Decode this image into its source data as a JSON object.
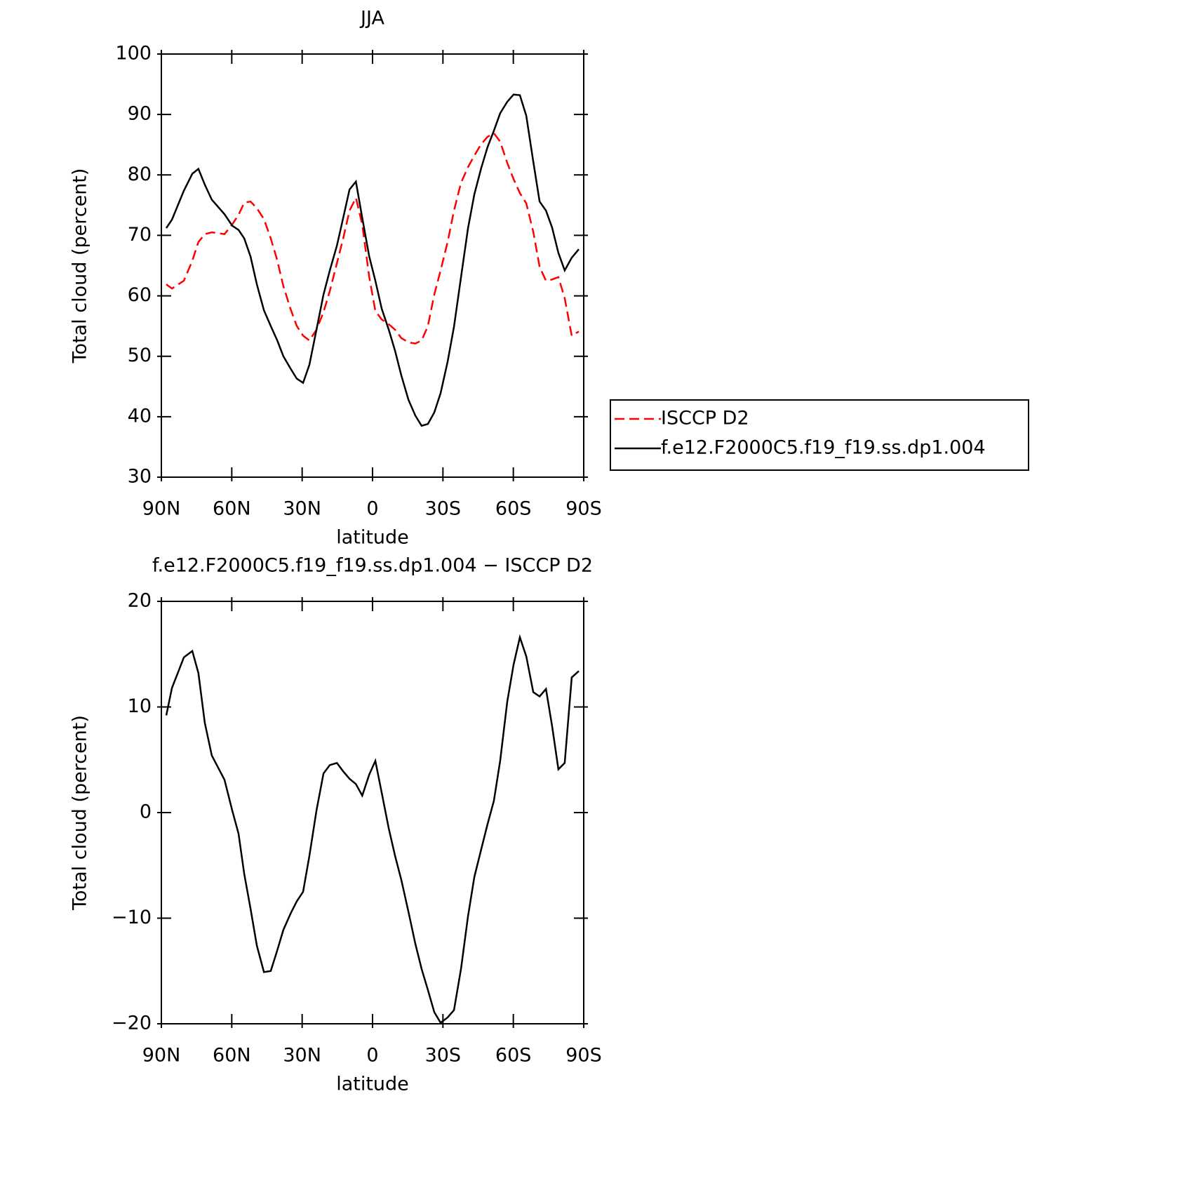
{
  "chart_data": [
    {
      "type": "line",
      "title": "JJA",
      "xlabel": "latitude",
      "ylabel": "Total cloud (percent)",
      "x": [
        87.9,
        85.5,
        80.4,
        76.8,
        74.2,
        71.5,
        68.5,
        63.1,
        59.8,
        57.1,
        54.7,
        52.0,
        49.3,
        46.3,
        43.4,
        40.7,
        38.0,
        35.0,
        32.3,
        29.6,
        26.9,
        23.9,
        20.9,
        18.2,
        15.2,
        12.5,
        9.8,
        7.1,
        4.4,
        1.4,
        -1.2,
        -3.9,
        -6.9,
        -9.6,
        -12.3,
        -15.3,
        -18.2,
        -20.9,
        -23.6,
        -26.3,
        -29.0,
        -32.0,
        -34.7,
        -37.7,
        -40.7,
        -43.4,
        -46.3,
        -49.0,
        -51.7,
        -54.4,
        -57.4,
        -60.1,
        -62.8,
        -65.5,
        -68.5,
        -71.2,
        -73.9,
        -76.5,
        -79.2,
        -81.9,
        -84.9,
        -87.9
      ],
      "series": [
        {
          "name": "ISCCP D2",
          "color": "#ff0000",
          "dashed": true,
          "values": [
            61.9,
            61.2,
            62.5,
            65.8,
            68.9,
            70.2,
            70.5,
            70.2,
            71.8,
            73.4,
            75.4,
            75.6,
            74.5,
            72.7,
            69.5,
            66.0,
            61.6,
            57.9,
            55.0,
            53.4,
            52.6,
            54.4,
            57.3,
            60.8,
            65.4,
            69.5,
            74.1,
            76.2,
            71.8,
            63.1,
            57.5,
            56.1,
            55.3,
            54.4,
            53.0,
            52.3,
            52.1,
            52.6,
            55.0,
            60.2,
            64.2,
            68.9,
            74.1,
            78.7,
            81.3,
            83.2,
            85.1,
            86.3,
            86.9,
            85.5,
            82.0,
            79.3,
            77.0,
            75.3,
            70.6,
            64.8,
            62.5,
            62.7,
            63.1,
            59.6,
            53.4,
            54.1
          ]
        },
        {
          "name": "f.e12.F2000C5.f19_f19.ss.dp1.004",
          "color": "#000000",
          "dashed": false,
          "values": [
            71.2,
            72.6,
            77.4,
            80.2,
            81.0,
            78.4,
            75.9,
            73.5,
            71.6,
            70.9,
            69.5,
            66.5,
            61.9,
            57.6,
            55.0,
            52.7,
            50.0,
            48.0,
            46.3,
            45.6,
            48.6,
            54.4,
            60.2,
            64.2,
            68.3,
            72.9,
            77.6,
            78.9,
            72.9,
            66.5,
            62.5,
            57.9,
            54.4,
            50.9,
            46.8,
            42.8,
            40.2,
            38.5,
            38.8,
            40.7,
            43.9,
            49.1,
            54.9,
            63.1,
            71.2,
            76.8,
            81.1,
            84.6,
            87.3,
            90.2,
            92.1,
            93.3,
            93.2,
            89.8,
            82.2,
            75.6,
            74.1,
            71.3,
            67.1,
            64.2,
            66.3,
            67.7
          ]
        }
      ],
      "xlim": [
        90,
        -90
      ],
      "xticks": [
        {
          "value": 90,
          "label": "90N"
        },
        {
          "value": 60,
          "label": "60N"
        },
        {
          "value": 30,
          "label": "30N"
        },
        0,
        {
          "value": -30,
          "label": "30S"
        },
        {
          "value": -60,
          "label": "60S"
        },
        {
          "value": -90,
          "label": "90S"
        }
      ],
      "ylim": [
        30,
        100
      ],
      "yticks": [
        30,
        40,
        50,
        60,
        70,
        80,
        90,
        100
      ],
      "legend": "right"
    },
    {
      "type": "line",
      "title": "f.e12.F2000C5.f19_f19.ss.dp1.004 − ISCCP D2",
      "xlabel": "latitude",
      "ylabel": "Total cloud (percent)",
      "x": [
        87.9,
        85.5,
        80.4,
        76.8,
        74.2,
        71.5,
        68.5,
        63.1,
        59.8,
        57.1,
        54.7,
        52.0,
        49.3,
        46.3,
        43.4,
        40.7,
        38.0,
        35.0,
        32.3,
        29.6,
        26.9,
        23.9,
        20.9,
        18.2,
        15.2,
        12.5,
        9.8,
        7.1,
        4.4,
        1.4,
        -1.2,
        -3.9,
        -6.9,
        -9.6,
        -12.3,
        -15.3,
        -18.2,
        -20.9,
        -23.6,
        -26.3,
        -29.0,
        -32.0,
        -34.7,
        -37.7,
        -40.7,
        -43.4,
        -46.3,
        -49.0,
        -51.7,
        -54.4,
        -57.4,
        -60.1,
        -62.8,
        -65.5,
        -68.5,
        -71.2,
        -73.9,
        -76.5,
        -79.2,
        -81.9,
        -84.9,
        -87.9
      ],
      "series": [
        {
          "color": "#000000",
          "dashed": false,
          "values": [
            9.2,
            11.8,
            14.7,
            15.3,
            13.2,
            8.5,
            5.4,
            3.1,
            0.2,
            -2.0,
            -5.8,
            -9.1,
            -12.6,
            -15.1,
            -15.0,
            -13.1,
            -11.1,
            -9.6,
            -8.4,
            -7.5,
            -4.1,
            0.2,
            3.7,
            4.5,
            4.7,
            3.9,
            3.2,
            2.7,
            1.6,
            3.6,
            4.9,
            1.9,
            -1.5,
            -4.1,
            -6.4,
            -9.4,
            -12.4,
            -14.8,
            -16.8,
            -18.9,
            -19.9,
            -19.4,
            -18.7,
            -14.8,
            -9.8,
            -6.1,
            -3.5,
            -1.1,
            1.1,
            4.9,
            10.5,
            14.0,
            16.6,
            14.8,
            11.4,
            11.0,
            11.7,
            8.2,
            4.1,
            4.7,
            12.8,
            13.4
          ]
        }
      ],
      "xlim": [
        90,
        -90
      ],
      "xticks": [
        {
          "value": 90,
          "label": "90N"
        },
        {
          "value": 60,
          "label": "60N"
        },
        {
          "value": 30,
          "label": "30N"
        },
        0,
        {
          "value": -30,
          "label": "30S"
        },
        {
          "value": -60,
          "label": "60S"
        },
        {
          "value": -90,
          "label": "90S"
        }
      ],
      "ylim": [
        -20,
        20
      ],
      "yticks": [
        {
          "value": -20,
          "label": "−20"
        },
        {
          "value": -10,
          "label": "−10"
        },
        0,
        10,
        20
      ]
    }
  ]
}
